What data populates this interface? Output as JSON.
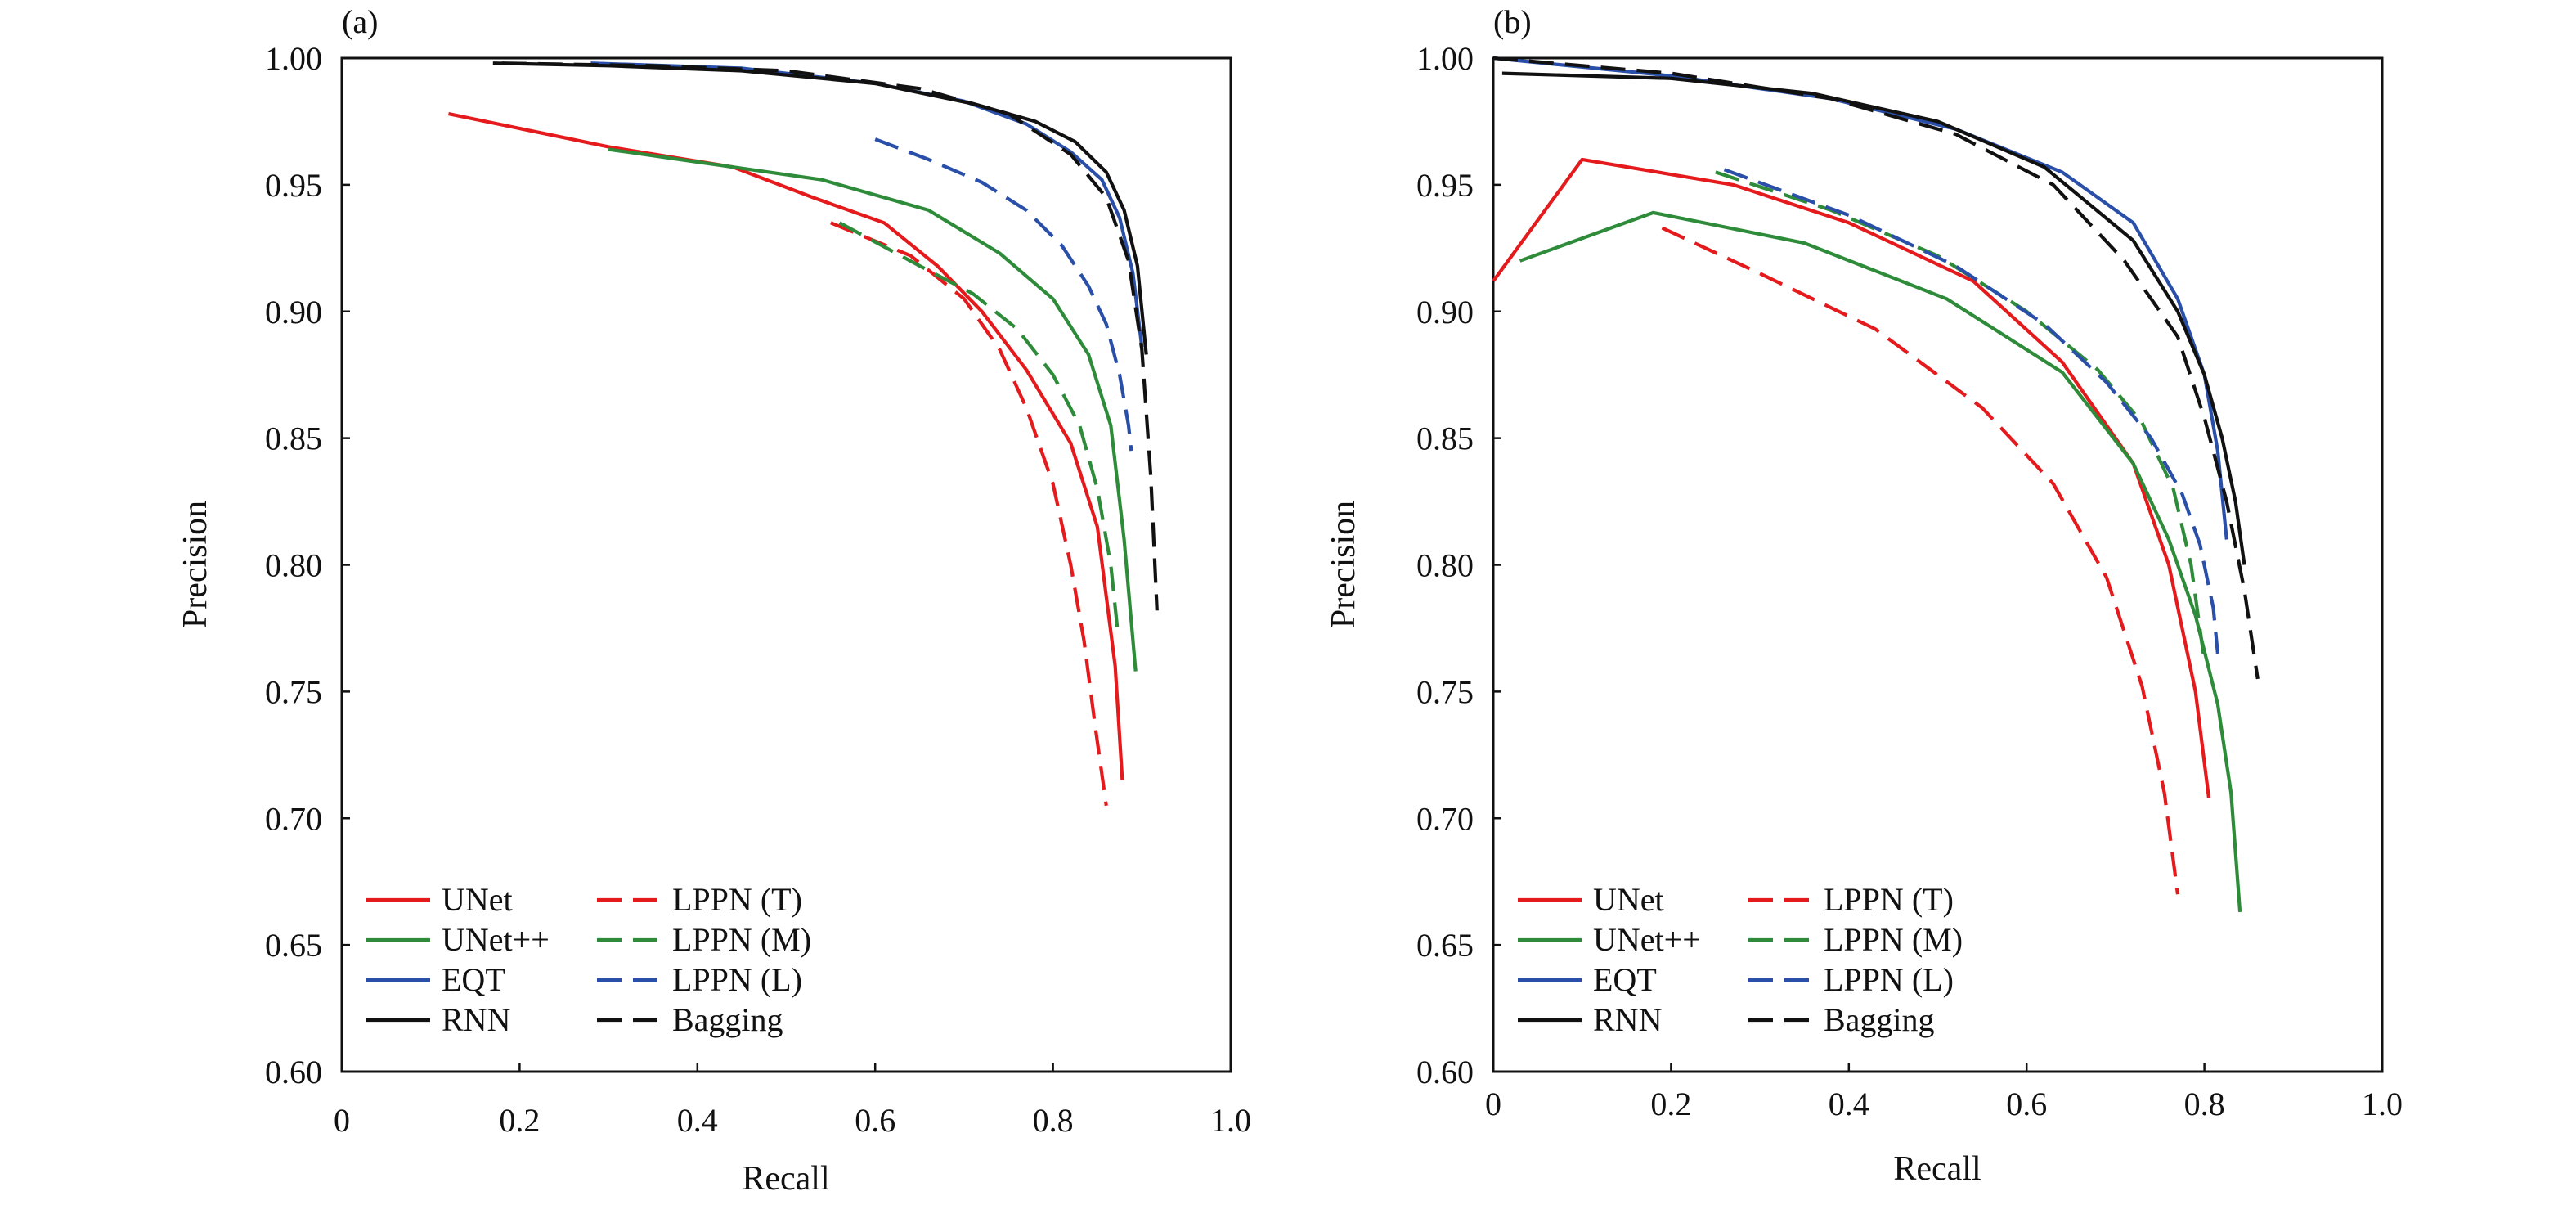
{
  "colors": {
    "red": "#e41a1c",
    "green": "#2e8b3a",
    "blue": "#2a4fa8",
    "black": "#111111"
  },
  "chart_data": [
    {
      "panel": "(a)",
      "type": "line",
      "xlabel": "Recall",
      "ylabel": "Precision",
      "xlim": [
        0,
        1.0
      ],
      "ylim": [
        0.6,
        1.0
      ],
      "xticks": [
        "0",
        "0.2",
        "0.4",
        "0.6",
        "0.8",
        "1.0"
      ],
      "yticks": [
        "0.60",
        "0.65",
        "0.70",
        "0.75",
        "0.80",
        "0.85",
        "0.90",
        "0.95",
        "1.00"
      ],
      "legend": "lower-left",
      "series": [
        {
          "name": "UNet",
          "color": "#e41a1c",
          "dash": false,
          "x": [
            0.12,
            0.3,
            0.44,
            0.53,
            0.61,
            0.67,
            0.72,
            0.77,
            0.82,
            0.85,
            0.87,
            0.878
          ],
          "y": [
            0.978,
            0.965,
            0.957,
            0.945,
            0.935,
            0.918,
            0.9,
            0.877,
            0.848,
            0.815,
            0.76,
            0.715
          ]
        },
        {
          "name": "UNet++",
          "color": "#2e8b3a",
          "dash": false,
          "x": [
            0.3,
            0.4,
            0.54,
            0.66,
            0.74,
            0.8,
            0.84,
            0.865,
            0.88,
            0.893
          ],
          "y": [
            0.964,
            0.959,
            0.952,
            0.94,
            0.923,
            0.905,
            0.883,
            0.855,
            0.81,
            0.758
          ]
        },
        {
          "name": "EQT",
          "color": "#2a4fa8",
          "dash": false,
          "x": [
            0.28,
            0.45,
            0.6,
            0.7,
            0.77,
            0.82,
            0.855,
            0.875,
            0.89,
            0.9
          ],
          "y": [
            0.998,
            0.996,
            0.99,
            0.983,
            0.974,
            0.963,
            0.952,
            0.937,
            0.915,
            0.886
          ]
        },
        {
          "name": "RNN",
          "color": "#111111",
          "dash": false,
          "x": [
            0.17,
            0.3,
            0.45,
            0.6,
            0.71,
            0.78,
            0.825,
            0.86,
            0.88,
            0.895,
            0.905
          ],
          "y": [
            0.998,
            0.997,
            0.995,
            0.99,
            0.982,
            0.975,
            0.967,
            0.955,
            0.94,
            0.918,
            0.883
          ]
        },
        {
          "name": "LPPN (T)",
          "color": "#e41a1c",
          "dash": true,
          "x": [
            0.55,
            0.64,
            0.7,
            0.74,
            0.77,
            0.8,
            0.82,
            0.835,
            0.848,
            0.86
          ],
          "y": [
            0.935,
            0.922,
            0.905,
            0.885,
            0.862,
            0.832,
            0.8,
            0.77,
            0.735,
            0.705
          ]
        },
        {
          "name": "LPPN (M)",
          "color": "#2e8b3a",
          "dash": true,
          "x": [
            0.56,
            0.65,
            0.71,
            0.76,
            0.8,
            0.83,
            0.85,
            0.865,
            0.873
          ],
          "y": [
            0.935,
            0.918,
            0.907,
            0.893,
            0.875,
            0.855,
            0.83,
            0.8,
            0.773
          ]
        },
        {
          "name": "LPPN (L)",
          "color": "#2a4fa8",
          "dash": true,
          "x": [
            0.6,
            0.66,
            0.72,
            0.77,
            0.81,
            0.84,
            0.86,
            0.875,
            0.885,
            0.888
          ],
          "y": [
            0.968,
            0.96,
            0.951,
            0.94,
            0.926,
            0.91,
            0.895,
            0.875,
            0.855,
            0.845
          ]
        },
        {
          "name": "Bagging",
          "color": "#111111",
          "dash": true,
          "x": [
            0.18,
            0.35,
            0.5,
            0.65,
            0.75,
            0.82,
            0.86,
            0.885,
            0.9,
            0.91,
            0.917
          ],
          "y": [
            0.998,
            0.997,
            0.995,
            0.988,
            0.978,
            0.962,
            0.945,
            0.92,
            0.885,
            0.835,
            0.782
          ]
        }
      ]
    },
    {
      "panel": "(b)",
      "type": "line",
      "xlabel": "Recall",
      "ylabel": "Precision",
      "xlim": [
        0,
        1.0
      ],
      "ylim": [
        0.6,
        1.0
      ],
      "xticks": [
        "0",
        "0.2",
        "0.4",
        "0.6",
        "0.8",
        "1.0"
      ],
      "yticks": [
        "0.60",
        "0.65",
        "0.70",
        "0.75",
        "0.80",
        "0.85",
        "0.90",
        "0.95",
        "1.00"
      ],
      "legend": "lower-left",
      "series": [
        {
          "name": "UNet",
          "color": "#e41a1c",
          "dash": false,
          "x": [
            0.0,
            0.1,
            0.27,
            0.4,
            0.54,
            0.64,
            0.72,
            0.76,
            0.79,
            0.805
          ],
          "y": [
            0.912,
            0.96,
            0.95,
            0.935,
            0.912,
            0.88,
            0.84,
            0.8,
            0.75,
            0.708
          ]
        },
        {
          "name": "UNet++",
          "color": "#2e8b3a",
          "dash": false,
          "x": [
            0.03,
            0.18,
            0.35,
            0.51,
            0.64,
            0.72,
            0.76,
            0.79,
            0.815,
            0.83,
            0.84
          ],
          "y": [
            0.92,
            0.939,
            0.927,
            0.905,
            0.876,
            0.84,
            0.81,
            0.78,
            0.745,
            0.71,
            0.663
          ]
        },
        {
          "name": "EQT",
          "color": "#2a4fa8",
          "dash": false,
          "x": [
            0.0,
            0.2,
            0.38,
            0.52,
            0.64,
            0.72,
            0.77,
            0.8,
            0.815,
            0.825
          ],
          "y": [
            1.0,
            0.993,
            0.984,
            0.972,
            0.955,
            0.935,
            0.905,
            0.875,
            0.845,
            0.81
          ]
        },
        {
          "name": "RNN",
          "color": "#111111",
          "dash": false,
          "x": [
            0.01,
            0.2,
            0.36,
            0.5,
            0.62,
            0.72,
            0.77,
            0.8,
            0.82,
            0.835,
            0.845
          ],
          "y": [
            0.994,
            0.992,
            0.986,
            0.975,
            0.957,
            0.928,
            0.9,
            0.875,
            0.85,
            0.825,
            0.8
          ]
        },
        {
          "name": "LPPN (T)",
          "color": "#e41a1c",
          "dash": true,
          "x": [
            0.19,
            0.3,
            0.43,
            0.55,
            0.63,
            0.69,
            0.73,
            0.755,
            0.77
          ],
          "y": [
            0.933,
            0.915,
            0.893,
            0.862,
            0.832,
            0.795,
            0.752,
            0.71,
            0.67
          ]
        },
        {
          "name": "LPPN (M)",
          "color": "#2e8b3a",
          "dash": true,
          "x": [
            0.25,
            0.38,
            0.5,
            0.6,
            0.68,
            0.73,
            0.765,
            0.785,
            0.8
          ],
          "y": [
            0.955,
            0.94,
            0.922,
            0.9,
            0.877,
            0.856,
            0.83,
            0.8,
            0.762
          ]
        },
        {
          "name": "LPPN (L)",
          "color": "#2a4fa8",
          "dash": true,
          "x": [
            0.26,
            0.4,
            0.52,
            0.62,
            0.69,
            0.74,
            0.775,
            0.795,
            0.81,
            0.815
          ],
          "y": [
            0.956,
            0.938,
            0.918,
            0.895,
            0.872,
            0.85,
            0.828,
            0.808,
            0.783,
            0.765
          ]
        },
        {
          "name": "Bagging",
          "color": "#111111",
          "dash": true,
          "x": [
            0.0,
            0.2,
            0.38,
            0.52,
            0.63,
            0.71,
            0.77,
            0.8,
            0.825,
            0.845,
            0.86
          ],
          "y": [
            1.0,
            0.994,
            0.984,
            0.97,
            0.95,
            0.92,
            0.89,
            0.858,
            0.825,
            0.79,
            0.755
          ]
        }
      ]
    }
  ]
}
